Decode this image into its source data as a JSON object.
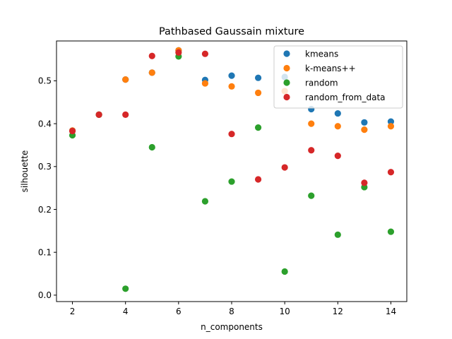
{
  "chart_data": {
    "type": "scatter",
    "title": "Pathbased Gaussain mixture",
    "xlabel": "n_components",
    "ylabel": "silhouette",
    "xlim": [
      1.4,
      14.6
    ],
    "ylim": [
      -0.015,
      0.593
    ],
    "xticks": [
      2,
      4,
      6,
      8,
      10,
      12,
      14
    ],
    "yticks": [
      0.0,
      0.1,
      0.2,
      0.3,
      0.4,
      0.5
    ],
    "ytick_labels": [
      "0.0",
      "0.1",
      "0.2",
      "0.3",
      "0.4",
      "0.5"
    ],
    "grid": false,
    "legend_position": "top-right",
    "x": [
      2,
      3,
      4,
      5,
      6,
      7,
      8,
      9,
      10,
      11,
      12,
      13,
      14
    ],
    "series": [
      {
        "name": "kmeans",
        "color": "#1f77b4",
        "values": [
          0.384,
          0.421,
          0.503,
          0.519,
          0.571,
          0.502,
          0.512,
          0.507,
          0.509,
          0.434,
          0.424,
          0.403,
          0.405
        ]
      },
      {
        "name": "k-means++",
        "color": "#ff7f0e",
        "values": [
          0.384,
          0.421,
          0.503,
          0.519,
          0.571,
          0.494,
          0.487,
          0.472,
          0.476,
          0.4,
          0.394,
          0.386,
          0.394
        ]
      },
      {
        "name": "random",
        "color": "#2ca02c",
        "values": [
          0.373,
          0.421,
          0.015,
          0.345,
          0.557,
          0.219,
          0.265,
          0.391,
          0.055,
          0.232,
          0.141,
          0.252,
          0.148
        ]
      },
      {
        "name": "random_from_data",
        "color": "#d62728",
        "values": [
          0.383,
          0.421,
          0.421,
          0.558,
          0.566,
          0.563,
          0.376,
          0.27,
          0.298,
          0.338,
          0.325,
          0.262,
          0.287
        ]
      }
    ]
  }
}
